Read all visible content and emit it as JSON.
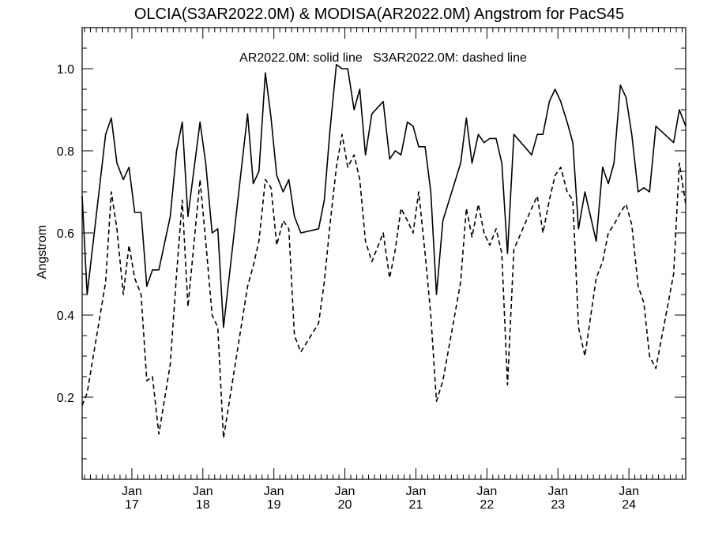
{
  "chart_data": {
    "type": "line",
    "title": "OLCIA(S3AR2022.0M) & MODISA(AR2022.0M)  Angstrom for PacS45",
    "annotation": "AR2022.0M: solid line   S3AR2022.0M: dashed line",
    "xlabel": "",
    "ylabel": "Angstrom",
    "xlim": [
      2016.3,
      2024.8
    ],
    "ylim": [
      0.0,
      1.1
    ],
    "yticks": [
      0.2,
      0.4,
      0.6,
      0.8,
      1.0
    ],
    "ytick_labels": [
      "0.2",
      "0.4",
      "0.6",
      "0.8",
      "1.0"
    ],
    "xticks": [
      {
        "value": 2017,
        "month": "Jan",
        "year": "17"
      },
      {
        "value": 2018,
        "month": "Jan",
        "year": "18"
      },
      {
        "value": 2019,
        "month": "Jan",
        "year": "19"
      },
      {
        "value": 2020,
        "month": "Jan",
        "year": "20"
      },
      {
        "value": 2021,
        "month": "Jan",
        "year": "21"
      },
      {
        "value": 2022,
        "month": "Jan",
        "year": "22"
      },
      {
        "value": 2023,
        "month": "Jan",
        "year": "23"
      },
      {
        "value": 2024,
        "month": "Jan",
        "year": "24"
      }
    ],
    "grid": false,
    "series": [
      {
        "style": "solid",
        "points": [
          [
            2016.3,
            0.69
          ],
          [
            2016.37,
            0.45
          ],
          [
            2016.63,
            0.84
          ],
          [
            2016.71,
            0.88
          ],
          [
            2016.79,
            0.77
          ],
          [
            2016.88,
            0.73
          ],
          [
            2016.96,
            0.76
          ],
          [
            2017.04,
            0.65
          ],
          [
            2017.13,
            0.65
          ],
          [
            2017.21,
            0.47
          ],
          [
            2017.29,
            0.51
          ],
          [
            2017.38,
            0.51
          ],
          [
            2017.54,
            0.64
          ],
          [
            2017.63,
            0.8
          ],
          [
            2017.71,
            0.87
          ],
          [
            2017.79,
            0.64
          ],
          [
            2017.96,
            0.87
          ],
          [
            2018.04,
            0.77
          ],
          [
            2018.13,
            0.6
          ],
          [
            2018.21,
            0.61
          ],
          [
            2018.29,
            0.37
          ],
          [
            2018.63,
            0.89
          ],
          [
            2018.71,
            0.72
          ],
          [
            2018.79,
            0.75
          ],
          [
            2018.88,
            0.99
          ],
          [
            2018.96,
            0.88
          ],
          [
            2019.04,
            0.74
          ],
          [
            2019.13,
            0.7
          ],
          [
            2019.21,
            0.73
          ],
          [
            2019.29,
            0.64
          ],
          [
            2019.38,
            0.6
          ],
          [
            2019.63,
            0.61
          ],
          [
            2019.71,
            0.68
          ],
          [
            2019.79,
            0.85
          ],
          [
            2019.88,
            1.01
          ],
          [
            2019.96,
            1.0
          ],
          [
            2020.04,
            1.0
          ],
          [
            2020.13,
            0.9
          ],
          [
            2020.21,
            0.95
          ],
          [
            2020.29,
            0.79
          ],
          [
            2020.38,
            0.89
          ],
          [
            2020.54,
            0.92
          ],
          [
            2020.63,
            0.78
          ],
          [
            2020.71,
            0.8
          ],
          [
            2020.79,
            0.79
          ],
          [
            2020.88,
            0.87
          ],
          [
            2020.96,
            0.86
          ],
          [
            2021.04,
            0.81
          ],
          [
            2021.13,
            0.81
          ],
          [
            2021.21,
            0.7
          ],
          [
            2021.29,
            0.45
          ],
          [
            2021.38,
            0.63
          ],
          [
            2021.63,
            0.77
          ],
          [
            2021.71,
            0.88
          ],
          [
            2021.79,
            0.77
          ],
          [
            2021.88,
            0.84
          ],
          [
            2021.96,
            0.82
          ],
          [
            2022.04,
            0.83
          ],
          [
            2022.13,
            0.83
          ],
          [
            2022.21,
            0.77
          ],
          [
            2022.29,
            0.55
          ],
          [
            2022.38,
            0.84
          ],
          [
            2022.63,
            0.79
          ],
          [
            2022.71,
            0.84
          ],
          [
            2022.79,
            0.84
          ],
          [
            2022.88,
            0.92
          ],
          [
            2022.96,
            0.95
          ],
          [
            2023.04,
            0.92
          ],
          [
            2023.13,
            0.87
          ],
          [
            2023.21,
            0.82
          ],
          [
            2023.29,
            0.61
          ],
          [
            2023.38,
            0.7
          ],
          [
            2023.54,
            0.58
          ],
          [
            2023.63,
            0.76
          ],
          [
            2023.71,
            0.72
          ],
          [
            2023.79,
            0.77
          ],
          [
            2023.88,
            0.96
          ],
          [
            2023.96,
            0.93
          ],
          [
            2024.04,
            0.84
          ],
          [
            2024.13,
            0.7
          ],
          [
            2024.21,
            0.71
          ],
          [
            2024.29,
            0.7
          ],
          [
            2024.38,
            0.86
          ],
          [
            2024.63,
            0.82
          ],
          [
            2024.71,
            0.9
          ],
          [
            2024.8,
            0.86
          ]
        ]
      },
      {
        "style": "dashed",
        "points": [
          [
            2016.3,
            0.18
          ],
          [
            2016.37,
            0.21
          ],
          [
            2016.63,
            0.48
          ],
          [
            2016.71,
            0.7
          ],
          [
            2016.79,
            0.61
          ],
          [
            2016.88,
            0.45
          ],
          [
            2016.96,
            0.57
          ],
          [
            2017.04,
            0.49
          ],
          [
            2017.13,
            0.45
          ],
          [
            2017.21,
            0.24
          ],
          [
            2017.29,
            0.25
          ],
          [
            2017.38,
            0.11
          ],
          [
            2017.54,
            0.28
          ],
          [
            2017.63,
            0.5
          ],
          [
            2017.71,
            0.68
          ],
          [
            2017.79,
            0.42
          ],
          [
            2017.96,
            0.73
          ],
          [
            2018.04,
            0.58
          ],
          [
            2018.13,
            0.4
          ],
          [
            2018.21,
            0.37
          ],
          [
            2018.29,
            0.1
          ],
          [
            2018.63,
            0.47
          ],
          [
            2018.71,
            0.52
          ],
          [
            2018.79,
            0.58
          ],
          [
            2018.88,
            0.73
          ],
          [
            2018.96,
            0.71
          ],
          [
            2019.04,
            0.57
          ],
          [
            2019.13,
            0.63
          ],
          [
            2019.21,
            0.61
          ],
          [
            2019.29,
            0.35
          ],
          [
            2019.38,
            0.31
          ],
          [
            2019.63,
            0.38
          ],
          [
            2019.71,
            0.48
          ],
          [
            2019.79,
            0.62
          ],
          [
            2019.88,
            0.76
          ],
          [
            2019.96,
            0.84
          ],
          [
            2020.04,
            0.76
          ],
          [
            2020.13,
            0.79
          ],
          [
            2020.21,
            0.73
          ],
          [
            2020.29,
            0.58
          ],
          [
            2020.38,
            0.53
          ],
          [
            2020.54,
            0.6
          ],
          [
            2020.63,
            0.49
          ],
          [
            2020.71,
            0.56
          ],
          [
            2020.79,
            0.66
          ],
          [
            2020.88,
            0.63
          ],
          [
            2020.96,
            0.6
          ],
          [
            2021.04,
            0.7
          ],
          [
            2021.13,
            0.55
          ],
          [
            2021.21,
            0.4
          ],
          [
            2021.29,
            0.19
          ],
          [
            2021.38,
            0.24
          ],
          [
            2021.63,
            0.48
          ],
          [
            2021.71,
            0.66
          ],
          [
            2021.79,
            0.59
          ],
          [
            2021.88,
            0.67
          ],
          [
            2021.96,
            0.6
          ],
          [
            2022.04,
            0.57
          ],
          [
            2022.13,
            0.61
          ],
          [
            2022.21,
            0.55
          ],
          [
            2022.29,
            0.23
          ],
          [
            2022.38,
            0.56
          ],
          [
            2022.63,
            0.66
          ],
          [
            2022.71,
            0.69
          ],
          [
            2022.79,
            0.6
          ],
          [
            2022.88,
            0.68
          ],
          [
            2022.96,
            0.74
          ],
          [
            2023.04,
            0.76
          ],
          [
            2023.13,
            0.7
          ],
          [
            2023.21,
            0.68
          ],
          [
            2023.29,
            0.37
          ],
          [
            2023.38,
            0.3
          ],
          [
            2023.54,
            0.49
          ],
          [
            2023.63,
            0.53
          ],
          [
            2023.71,
            0.6
          ],
          [
            2023.79,
            0.62
          ],
          [
            2023.88,
            0.65
          ],
          [
            2023.96,
            0.67
          ],
          [
            2024.04,
            0.62
          ],
          [
            2024.13,
            0.47
          ],
          [
            2024.21,
            0.43
          ],
          [
            2024.29,
            0.3
          ],
          [
            2024.38,
            0.27
          ],
          [
            2024.63,
            0.5
          ],
          [
            2024.71,
            0.77
          ],
          [
            2024.8,
            0.67
          ]
        ]
      }
    ]
  }
}
